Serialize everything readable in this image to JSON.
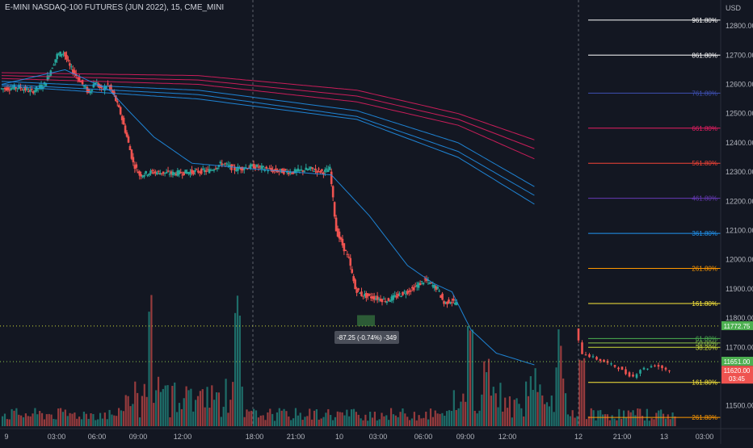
{
  "header": {
    "title": "E-MINI NASDAQ-100 FUTURES (JUN 2022), 15, CME_MINI",
    "currency": "USD"
  },
  "colors": {
    "background": "#131722",
    "up": "#26a69a",
    "down": "#ef5350",
    "grid_divider": "#5d606b",
    "axis_text": "#b2b5be",
    "ma_blue": "#2196f3",
    "ma_red": "#e91e63"
  },
  "chart_data": {
    "type": "candlestick",
    "title": "E-MINI NASDAQ-100 FUTURES (JUN 2022), 15, CME_MINI",
    "y_unit": "USD",
    "ylim": [
      11430,
      12850
    ],
    "y_ticks": [
      "12800.00",
      "12700.00",
      "12600.00",
      "12500.00",
      "12400.00",
      "12300.00",
      "12200.00",
      "12100.00",
      "12000.00",
      "11900.00",
      "11800.00",
      "11700.00",
      "11600.00",
      "11500.00"
    ],
    "x_ticks": [
      "9",
      "03:00",
      "06:00",
      "09:00",
      "12:00",
      "18:00",
      "21:00",
      "10",
      "03:00",
      "06:00",
      "09:00",
      "12:00",
      "12",
      "21:00",
      "13",
      "03:00"
    ],
    "session_dividers": [
      "18:00",
      "12"
    ],
    "price_path": [
      [
        0,
        12585
      ],
      [
        3,
        12590
      ],
      [
        5,
        12575
      ],
      [
        7,
        12600
      ],
      [
        8,
        12650
      ],
      [
        9,
        12700
      ],
      [
        10,
        12710
      ],
      [
        11,
        12660
      ],
      [
        12,
        12630
      ],
      [
        13,
        12600
      ],
      [
        14,
        12570
      ],
      [
        15,
        12610
      ],
      [
        16,
        12580
      ],
      [
        17,
        12600
      ],
      [
        18,
        12560
      ],
      [
        19,
        12500
      ],
      [
        20,
        12420
      ],
      [
        21,
        12330
      ],
      [
        22,
        12290
      ],
      [
        24,
        12300
      ],
      [
        27,
        12295
      ],
      [
        30,
        12300
      ],
      [
        33,
        12305
      ],
      [
        35,
        12330
      ],
      [
        37,
        12310
      ],
      [
        40,
        12320
      ],
      [
        43,
        12305
      ],
      [
        46,
        12300
      ],
      [
        49,
        12310
      ],
      [
        51,
        12300
      ],
      [
        52,
        12310
      ],
      [
        53,
        12100
      ],
      [
        54,
        12050
      ],
      [
        55,
        12000
      ],
      [
        56,
        11900
      ],
      [
        57,
        11880
      ],
      [
        59,
        11870
      ],
      [
        61,
        11860
      ],
      [
        63,
        11880
      ],
      [
        65,
        11900
      ],
      [
        67,
        11930
      ],
      [
        69,
        11900
      ],
      [
        70,
        11850
      ],
      [
        71,
        11860
      ],
      [
        72,
        11850
      ]
    ],
    "price_path_after_gap": [
      [
        0,
        11760
      ],
      [
        1,
        11680
      ],
      [
        2,
        11670
      ],
      [
        3,
        11660
      ],
      [
        4,
        11650
      ],
      [
        5,
        11640
      ],
      [
        6,
        11630
      ],
      [
        7,
        11610
      ],
      [
        8,
        11600
      ],
      [
        9,
        11625
      ],
      [
        10,
        11630
      ],
      [
        11,
        11640
      ],
      [
        12,
        11630
      ],
      [
        13,
        11620
      ]
    ],
    "series": [
      {
        "name": "",
        "color": "#e91e63",
        "values": [
          [
            0,
            12640
          ],
          [
            31,
            12630
          ],
          [
            56,
            12580
          ],
          [
            72,
            12500
          ],
          [
            84,
            12410
          ]
        ]
      },
      {
        "name": "",
        "color": "#e91e63",
        "values": [
          [
            0,
            12630
          ],
          [
            31,
            12615
          ],
          [
            56,
            12560
          ],
          [
            72,
            12480
          ],
          [
            84,
            12380
          ]
        ]
      },
      {
        "name": "",
        "color": "#e91e63",
        "values": [
          [
            0,
            12620
          ],
          [
            31,
            12600
          ],
          [
            56,
            12540
          ],
          [
            72,
            12460
          ],
          [
            84,
            12345
          ]
        ]
      },
      {
        "name": "",
        "color": "#2196f3",
        "values": [
          [
            0,
            12610
          ],
          [
            31,
            12580
          ],
          [
            56,
            12510
          ],
          [
            72,
            12400
          ],
          [
            84,
            12250
          ]
        ]
      },
      {
        "name": "",
        "color": "#2196f3",
        "values": [
          [
            0,
            12600
          ],
          [
            31,
            12565
          ],
          [
            56,
            12490
          ],
          [
            72,
            12370
          ],
          [
            84,
            12220
          ]
        ]
      },
      {
        "name": "",
        "color": "#2196f3",
        "values": [
          [
            0,
            12595
          ],
          [
            31,
            12550
          ],
          [
            56,
            12480
          ],
          [
            72,
            12350
          ],
          [
            84,
            12190
          ]
        ]
      },
      {
        "name": "",
        "color": "#2196f3",
        "values": [
          [
            0,
            12600
          ],
          [
            10,
            12650
          ],
          [
            17,
            12580
          ],
          [
            20,
            12510
          ],
          [
            24,
            12420
          ],
          [
            30,
            12330
          ],
          [
            40,
            12310
          ],
          [
            52,
            12290
          ],
          [
            58,
            12150
          ],
          [
            64,
            11980
          ],
          [
            68,
            11920
          ],
          [
            71,
            11890
          ],
          [
            74,
            11760
          ],
          [
            78,
            11680
          ],
          [
            84,
            11640
          ]
        ]
      }
    ],
    "fib_levels": [
      {
        "label": "961.80%",
        "value": 12820,
        "color": "#ffffff"
      },
      {
        "label": "861.80%",
        "value": 12700,
        "color": "#ffffff"
      },
      {
        "label": "761.80%",
        "value": 12570,
        "color": "#3f51b5"
      },
      {
        "label": "661.80%",
        "value": 12450,
        "color": "#e91e63"
      },
      {
        "label": "561.80%",
        "value": 12330,
        "color": "#f44336"
      },
      {
        "label": "461.80%",
        "value": 12210,
        "color": "#673ab7"
      },
      {
        "label": "361.80%",
        "value": 12090,
        "color": "#2196f3"
      },
      {
        "label": "261.80%",
        "value": 11970,
        "color": "#ff9800"
      },
      {
        "label": "161.80%",
        "value": 11850,
        "color": "#ffeb3b"
      },
      {
        "label": "61.80%",
        "value": 11730,
        "color": "#4caf50"
      },
      {
        "label": "50.00%",
        "value": 11715,
        "color": "#8bc34a"
      },
      {
        "label": "38.20%",
        "value": 11700,
        "color": "#cddc39"
      },
      {
        "label": "161.80%",
        "value": 11580,
        "color": "#ffeb3b"
      },
      {
        "label": "261.80%",
        "value": 11460,
        "color": "#ff9800"
      }
    ],
    "dotted_levels": [
      {
        "value": 11772.75,
        "color": "#cddc39"
      },
      {
        "value": 11651.0,
        "color": "#8bc34a"
      }
    ],
    "price_badges": [
      {
        "text": "11772.75",
        "value": 11772.75,
        "bg": "#4caf50",
        "fg": "#ffffff"
      },
      {
        "text": "11651.00",
        "value": 11651.0,
        "bg": "#4caf50",
        "fg": "#ffffff"
      },
      {
        "text": "11620.00",
        "value": 11620.0,
        "bg": "#ef5350",
        "fg": "#ffffff",
        "sub": "03:45"
      }
    ],
    "measure": {
      "text": "-87.25 (-0.74%) -349",
      "y_top": 11810,
      "y_bottom": 11772.75
    }
  }
}
